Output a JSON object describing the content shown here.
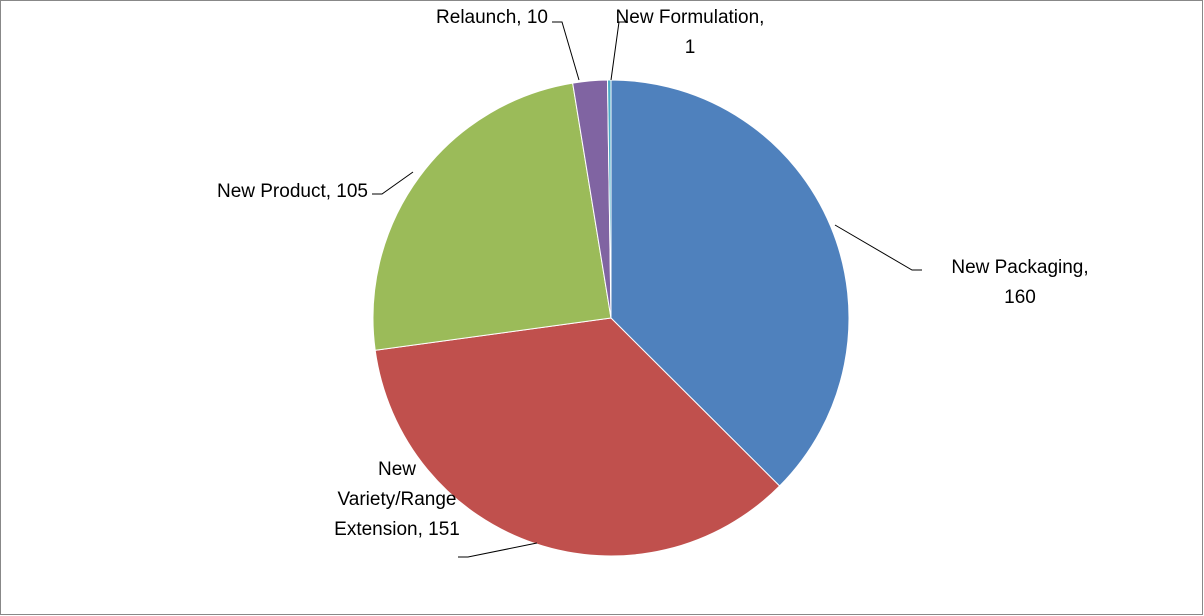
{
  "chart_data": {
    "type": "pie",
    "values": [
      160,
      151,
      105,
      10,
      1
    ],
    "value_labels": [
      "New Packaging,\n160",
      "New\nVariety/Range\nExtension, 151",
      "New Product, 105",
      "Relaunch, 10",
      "New Formulation,\n1"
    ],
    "colors": [
      "#4f81bd",
      "#c0504d",
      "#9bbb59",
      "#8064a2",
      "#4bacc6"
    ]
  }
}
